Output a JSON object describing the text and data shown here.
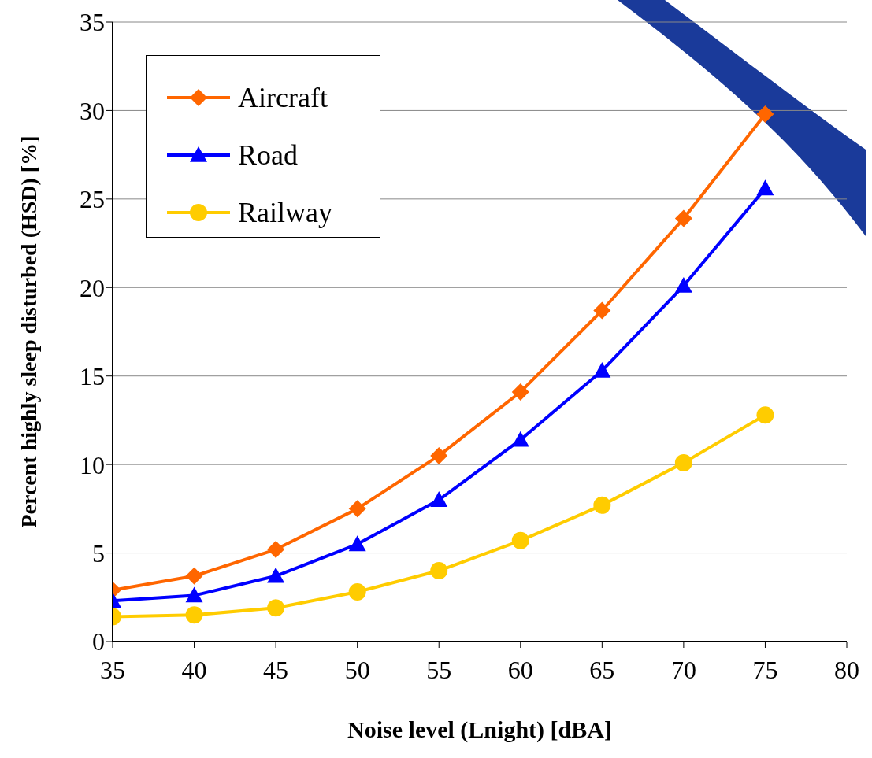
{
  "chart_data": {
    "type": "line",
    "xlabel": "Noise level (Lnight) [dBA]",
    "ylabel": "Percent highly sleep disturbed (HSD) [%]",
    "x": [
      35,
      40,
      45,
      50,
      55,
      60,
      65,
      70,
      75
    ],
    "series": [
      {
        "name": "Aircraft",
        "color": "#ff6600",
        "marker": "diamond",
        "values": [
          2.9,
          3.7,
          5.2,
          7.5,
          10.5,
          14.1,
          18.7,
          23.9,
          29.8
        ]
      },
      {
        "name": "Road",
        "color": "#0000ff",
        "marker": "triangle",
        "values": [
          2.3,
          2.6,
          3.7,
          5.5,
          8.0,
          11.4,
          15.3,
          20.1,
          25.6
        ]
      },
      {
        "name": "Railway",
        "color": "#ffcc00",
        "marker": "circle",
        "values": [
          1.4,
          1.5,
          1.9,
          2.8,
          4.0,
          5.7,
          7.7,
          10.1,
          12.8
        ]
      }
    ],
    "xlim": [
      35,
      80
    ],
    "xticks": [
      35,
      40,
      45,
      50,
      55,
      60,
      65,
      70,
      75,
      80
    ],
    "ylim": [
      0,
      35
    ],
    "yticks": [
      0,
      5,
      10,
      15,
      20,
      25,
      30,
      35
    ],
    "grid": "y",
    "legend": "top left",
    "line_style": "solid"
  }
}
